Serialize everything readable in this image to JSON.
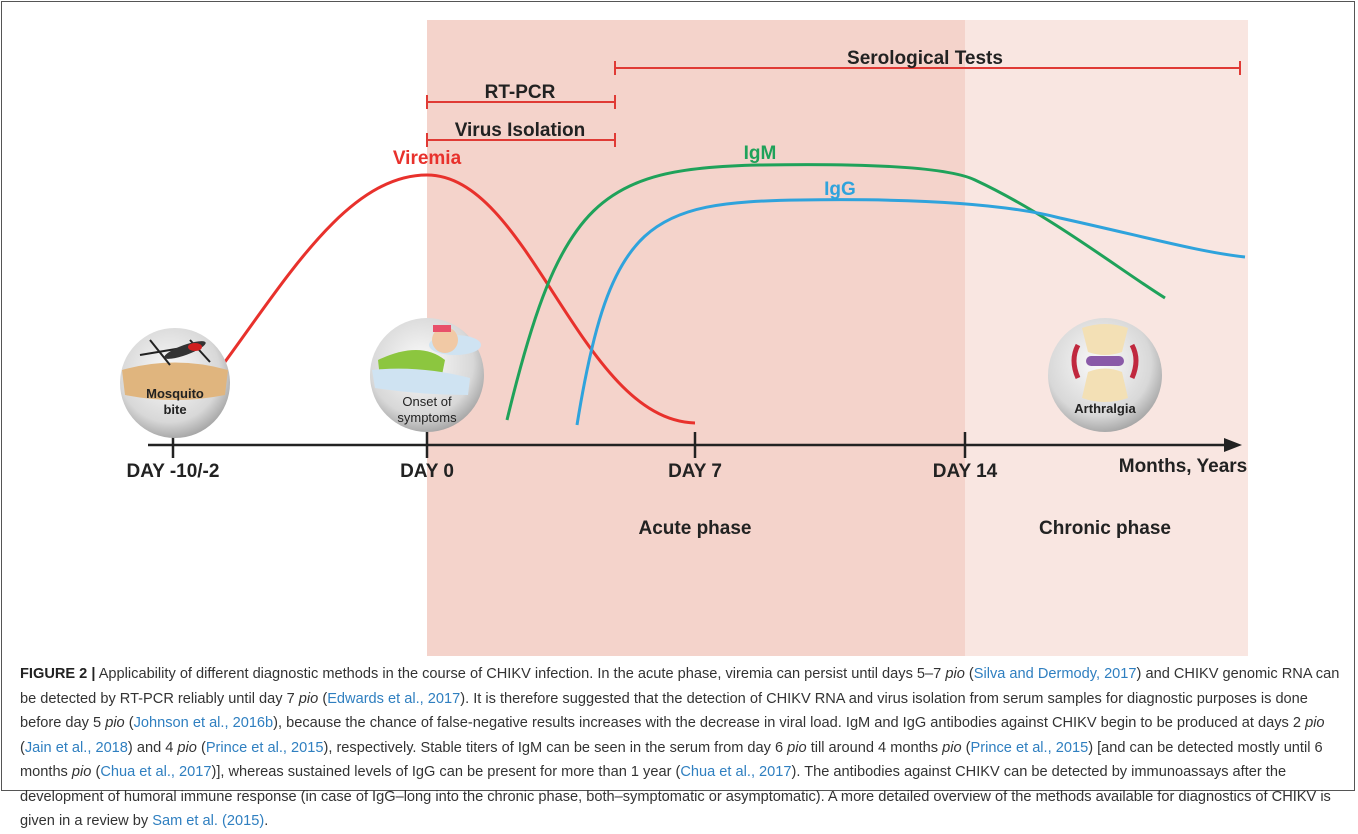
{
  "figure": {
    "methods": [
      "Serological Tests",
      "RT-PCR",
      "Virus Isolation"
    ],
    "curves": [
      "Viremia",
      "IgM",
      "IgG"
    ],
    "icons": [
      [
        "Mosquito",
        "bite"
      ],
      [
        "Onset of",
        "symptoms"
      ],
      [
        "Arthralgia"
      ]
    ],
    "axis_labels": [
      "DAY -10/-2",
      "DAY 0",
      "DAY 7",
      "DAY 14"
    ],
    "axis_end": "Months, Years",
    "phases": [
      "Acute phase",
      "Chronic phase"
    ]
  },
  "caption": {
    "runs": [
      "FIGURE 2 |",
      " Applicability of different diagnostic methods in the course of CHIKV infection. In the acute phase, viremia can persist until days 5–7 ",
      "pio",
      " (",
      "Silva and Dermody, 2017",
      ") and CHIKV genomic RNA can be detected by RT-PCR reliably until day 7 ",
      "pio",
      " (",
      "Edwards et al., 2017",
      "). It is therefore suggested that the detection of CHIKV RNA and virus isolation from serum samples for diagnostic purposes is done before day 5 ",
      "pio",
      " (",
      "Johnson et al., 2016b",
      "), because the chance of false-negative results increases with the decrease in viral load. IgM and IgG antibodies against CHIKV begin to be produced at days 2 ",
      "pio",
      " (",
      "Jain et al., 2018",
      ") and 4 ",
      "pio",
      " (",
      "Prince et al., 2015",
      "), respectively. Stable titers of IgM can be seen in the serum from day 6 ",
      "pio",
      " till around 4 months ",
      "pio",
      " (",
      "Prince et al., 2015",
      ") [and can be detected mostly until 6 months ",
      "pio",
      " (",
      "Chua et al., 2017",
      ")], whereas sustained levels of IgG can be present for more than 1 year (",
      "Chua et al., 2017",
      "). The antibodies against CHIKV can be detected by immunoassays after the development of humoral immune response (in case of IgG–long into the chronic phase, both–symptomatic or asymptomatic). A more detailed overview of the methods available for diagnostics of CHIKV is given in a review by ",
      "Sam et al. (2015)",
      "."
    ]
  }
}
